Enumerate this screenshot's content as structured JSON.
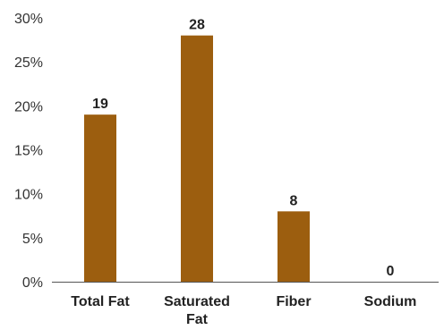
{
  "chart_data": {
    "type": "bar",
    "categories": [
      [
        "Total Fat"
      ],
      [
        "Saturated",
        "Fat"
      ],
      [
        "Fiber"
      ],
      [
        "Sodium"
      ]
    ],
    "values": [
      19,
      28,
      8,
      0
    ],
    "data_labels": [
      "19",
      "28",
      "8",
      "0"
    ],
    "yticks": [
      "0%",
      "5%",
      "10%",
      "15%",
      "20%",
      "25%",
      "30%"
    ],
    "ytick_values": [
      0,
      5,
      10,
      15,
      20,
      25,
      30
    ],
    "ylim": [
      0,
      30
    ],
    "grid": false,
    "legend": "none",
    "bar_color": "#9c5e0f"
  }
}
